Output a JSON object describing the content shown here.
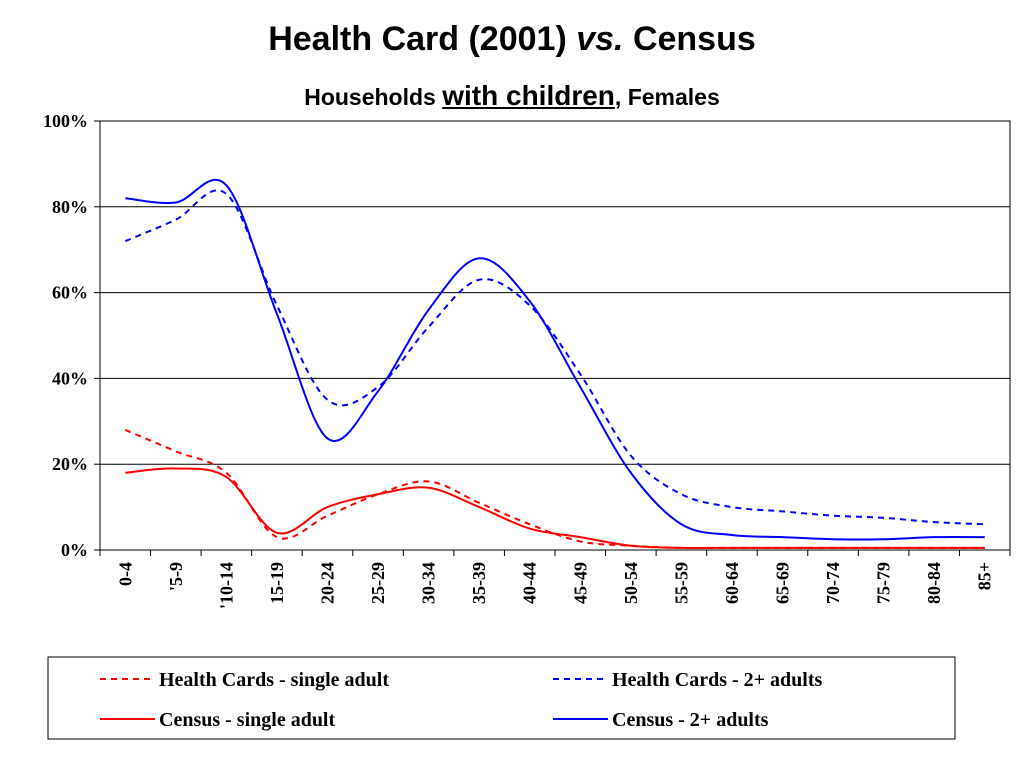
{
  "title": {
    "main": "Health Card (2001)",
    "italic": "vs.",
    "tail": "Census"
  },
  "subtitle": {
    "pre": "Households",
    "emph": "with children",
    "post": ", Females"
  },
  "chart_data": {
    "type": "line",
    "categories": [
      "0-4",
      "'5-9",
      "'10-14",
      "15-19",
      "20-24",
      "25-29",
      "30-34",
      "35-39",
      "40-44",
      "45-49",
      "50-54",
      "55-59",
      "60-64",
      "65-69",
      "70-74",
      "75-79",
      "80-84",
      "85+"
    ],
    "yticks": [
      "0%",
      "20%",
      "40%",
      "60%",
      "80%",
      "100%"
    ],
    "ylim": [
      0,
      100
    ],
    "grid": true,
    "legend_position": "bottom",
    "series": [
      {
        "name": "Health Cards - single adult",
        "color": "#ff0000",
        "dash": "dashed",
        "values": [
          28,
          23,
          18,
          3,
          8,
          13,
          16,
          11,
          6,
          2,
          1,
          0.5,
          0.5,
          0.5,
          0.5,
          0.5,
          0.5,
          0.5
        ]
      },
      {
        "name": "Health Cards - 2+ adults",
        "color": "#0000ff",
        "dash": "dashed",
        "values": [
          72,
          77,
          83,
          57,
          35,
          38,
          52,
          63,
          57,
          41,
          22,
          13,
          10,
          9,
          8,
          7.5,
          6.5,
          6
        ]
      },
      {
        "name": "Census - single adult",
        "color": "#ff0000",
        "dash": "solid",
        "values": [
          18,
          19,
          17,
          4,
          10,
          13,
          14.5,
          10,
          5,
          3,
          1,
          0.5,
          0.5,
          0.5,
          0.5,
          0.5,
          0.5,
          0.5
        ]
      },
      {
        "name": "Census - 2+ adults",
        "color": "#0000ff",
        "dash": "solid",
        "values": [
          82,
          81,
          85,
          55,
          26,
          37,
          56,
          68,
          58,
          38,
          18,
          6,
          3.5,
          3,
          2.5,
          2.5,
          3,
          3
        ]
      }
    ]
  }
}
